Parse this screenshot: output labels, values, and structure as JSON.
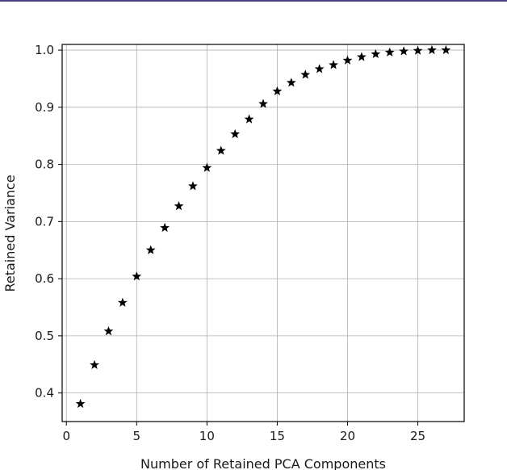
{
  "colors": {
    "frame_accent": "#4b3f8c",
    "grid": "#b0b0b0",
    "marker": "#000000",
    "text": "#1a1a1a"
  },
  "chart_data": {
    "type": "scatter",
    "title": "",
    "xlabel": "Number of Retained PCA Components",
    "ylabel": "Retained Variance",
    "xlim": [
      -0.3,
      28.3
    ],
    "ylim": [
      0.35,
      1.01
    ],
    "xticks": [
      0,
      5,
      10,
      15,
      20,
      25
    ],
    "yticks": [
      0.4,
      0.5,
      0.6,
      0.7,
      0.8,
      0.9,
      1.0
    ],
    "xtick_labels": [
      "0",
      "5",
      "10",
      "15",
      "20",
      "25"
    ],
    "ytick_labels": [
      "0.4",
      "0.5",
      "0.6",
      "0.7",
      "0.8",
      "0.9",
      "1.0"
    ],
    "grid": true,
    "marker": "star",
    "series": [
      {
        "x": [
          1,
          2,
          3,
          4,
          5,
          6,
          7,
          8,
          9,
          10,
          11,
          12,
          13,
          14,
          15,
          16,
          17,
          18,
          19,
          20,
          21,
          22,
          23,
          24,
          25,
          26,
          27
        ],
        "y": [
          0.381,
          0.449,
          0.508,
          0.558,
          0.604,
          0.65,
          0.689,
          0.727,
          0.762,
          0.794,
          0.824,
          0.853,
          0.879,
          0.906,
          0.928,
          0.943,
          0.957,
          0.967,
          0.974,
          0.982,
          0.988,
          0.993,
          0.996,
          0.998,
          0.999,
          1.0,
          1.0
        ]
      }
    ]
  }
}
